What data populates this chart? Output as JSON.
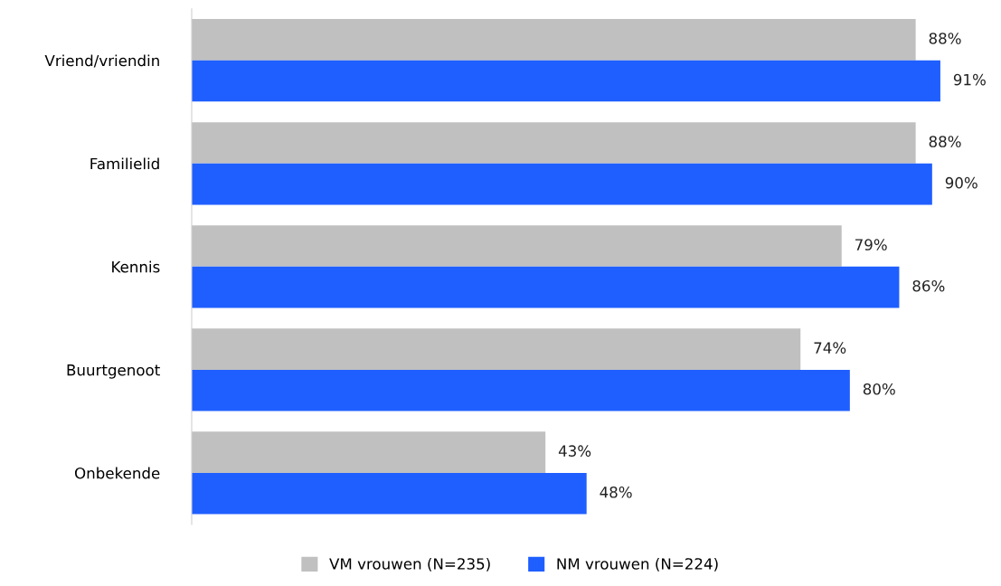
{
  "chart_data": {
    "type": "bar",
    "orientation": "horizontal",
    "categories": [
      "Vriend/vriendin",
      "Familielid",
      "Kennis",
      "Buurtgenoot",
      "Onbekende"
    ],
    "series": [
      {
        "name": "VM vrouwen (N=235)",
        "color": "#c0c0c0",
        "values": [
          88,
          88,
          79,
          74,
          43
        ],
        "value_labels": [
          "88%",
          "88%",
          "79%",
          "74%",
          "43%"
        ]
      },
      {
        "name": "NM vrouwen (N=224)",
        "color": "#1f5fff",
        "values": [
          91,
          90,
          86,
          80,
          48
        ],
        "value_labels": [
          "91%",
          "90%",
          "86%",
          "80%",
          "48%"
        ]
      }
    ],
    "legend": "bottom",
    "grid": false,
    "tick_labels": "y"
  }
}
